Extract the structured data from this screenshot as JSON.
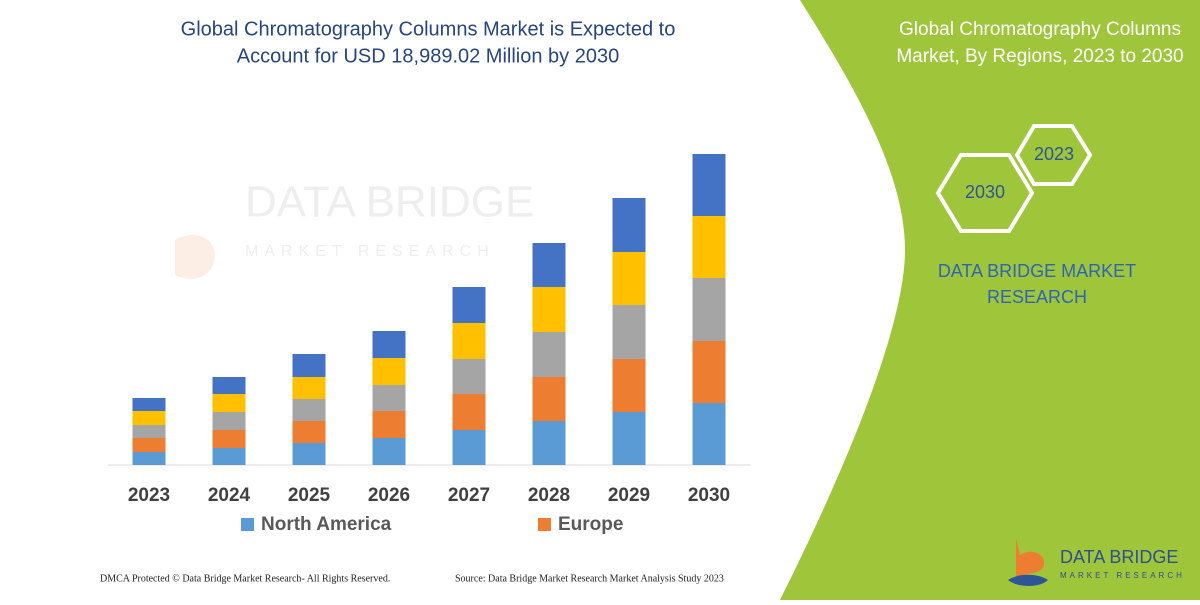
{
  "chart_data": {
    "type": "bar",
    "stacked": true,
    "title": [
      "Global Chromatography Columns Market is Expected to",
      "Account for USD 18,989.02 Million by 2030"
    ],
    "categories": [
      "2023",
      "2024",
      "2025",
      "2026",
      "2027",
      "2028",
      "2029",
      "2030"
    ],
    "series": [
      {
        "name": "North America",
        "color": "#5b9bd5",
        "values": [
          13,
          17,
          22,
          27,
          35,
          44,
          53,
          62
        ]
      },
      {
        "name": "Europe",
        "color": "#ed7d31",
        "values": [
          14,
          18,
          22,
          27,
          36,
          44,
          53,
          62
        ]
      },
      {
        "color": "#a5a5a5",
        "values": [
          13,
          18,
          22,
          26,
          35,
          45,
          54,
          63
        ]
      },
      {
        "color": "#ffc000",
        "values": [
          14,
          18,
          22,
          27,
          36,
          45,
          53,
          62
        ]
      },
      {
        "color": "#4472c4",
        "values": [
          13,
          17,
          23,
          27,
          36,
          44,
          54,
          62
        ]
      }
    ],
    "ylim": [
      0,
      320
    ]
  },
  "watermark": [
    "DATA BRIDGE",
    "MARKET RESEARCH"
  ],
  "panel": {
    "title": [
      "Global Chromatography Columns",
      "Market, By Regions, 2023 to 2030"
    ],
    "hexagons": [
      "2023",
      "2030"
    ],
    "brand": [
      "DATA BRIDGE MARKET",
      "RESEARCH"
    ]
  },
  "logo": [
    "DATA BRIDGE",
    "MARKET RESEARCH"
  ],
  "footer": [
    "DMCA Protected © Data Bridge Market Research-  All Rights Reserved.",
    "Source: Data Bridge Market Research  Market Analysis Study 2023"
  ]
}
